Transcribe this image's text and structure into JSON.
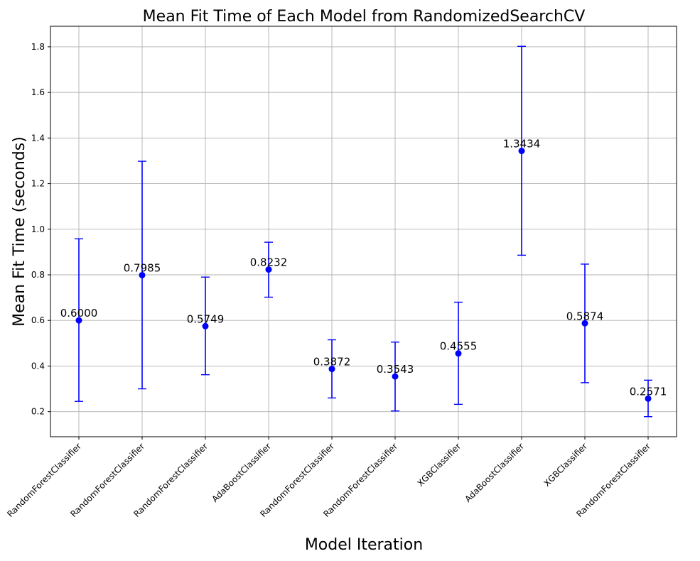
{
  "chart_data": {
    "type": "scatter",
    "title": "Mean Fit Time of Each Model from RandomizedSearchCV",
    "xlabel": "Model Iteration",
    "ylabel": "Mean Fit Time (seconds)",
    "ylim": [
      0.09,
      1.89
    ],
    "yticks": [
      0.2,
      0.4,
      0.6,
      0.8,
      1.0,
      1.2,
      1.4,
      1.6,
      1.8
    ],
    "ytick_labels": [
      "0.2",
      "0.4",
      "0.6",
      "0.8",
      "1.0",
      "1.2",
      "1.4",
      "1.6",
      "1.8"
    ],
    "grid": true,
    "color": "#0000ff",
    "categories": [
      "RandomForestClassifier",
      "RandomForestClassifier",
      "RandomForestClassifier",
      "AdaBoostClassifier",
      "RandomForestClassifier",
      "RandomForestClassifier",
      "XGBClassifier",
      "AdaBoostClassifier",
      "XGBClassifier",
      "RandomForestClassifier"
    ],
    "values": [
      0.6,
      0.7985,
      0.5749,
      0.8232,
      0.3872,
      0.3543,
      0.4555,
      1.3434,
      0.5874,
      0.2571
    ],
    "value_labels": [
      "0.6000",
      "0.7985",
      "0.5749",
      "0.8232",
      "0.3872",
      "0.3543",
      "0.4555",
      "1.3434",
      "0.5874",
      "0.2571"
    ],
    "error_low": [
      0.245,
      0.3,
      0.362,
      0.702,
      0.26,
      0.203,
      0.232,
      0.886,
      0.327,
      0.178
    ],
    "error_high": [
      0.958,
      1.298,
      0.79,
      0.943,
      0.515,
      0.505,
      0.68,
      1.802,
      0.847,
      0.338
    ]
  }
}
